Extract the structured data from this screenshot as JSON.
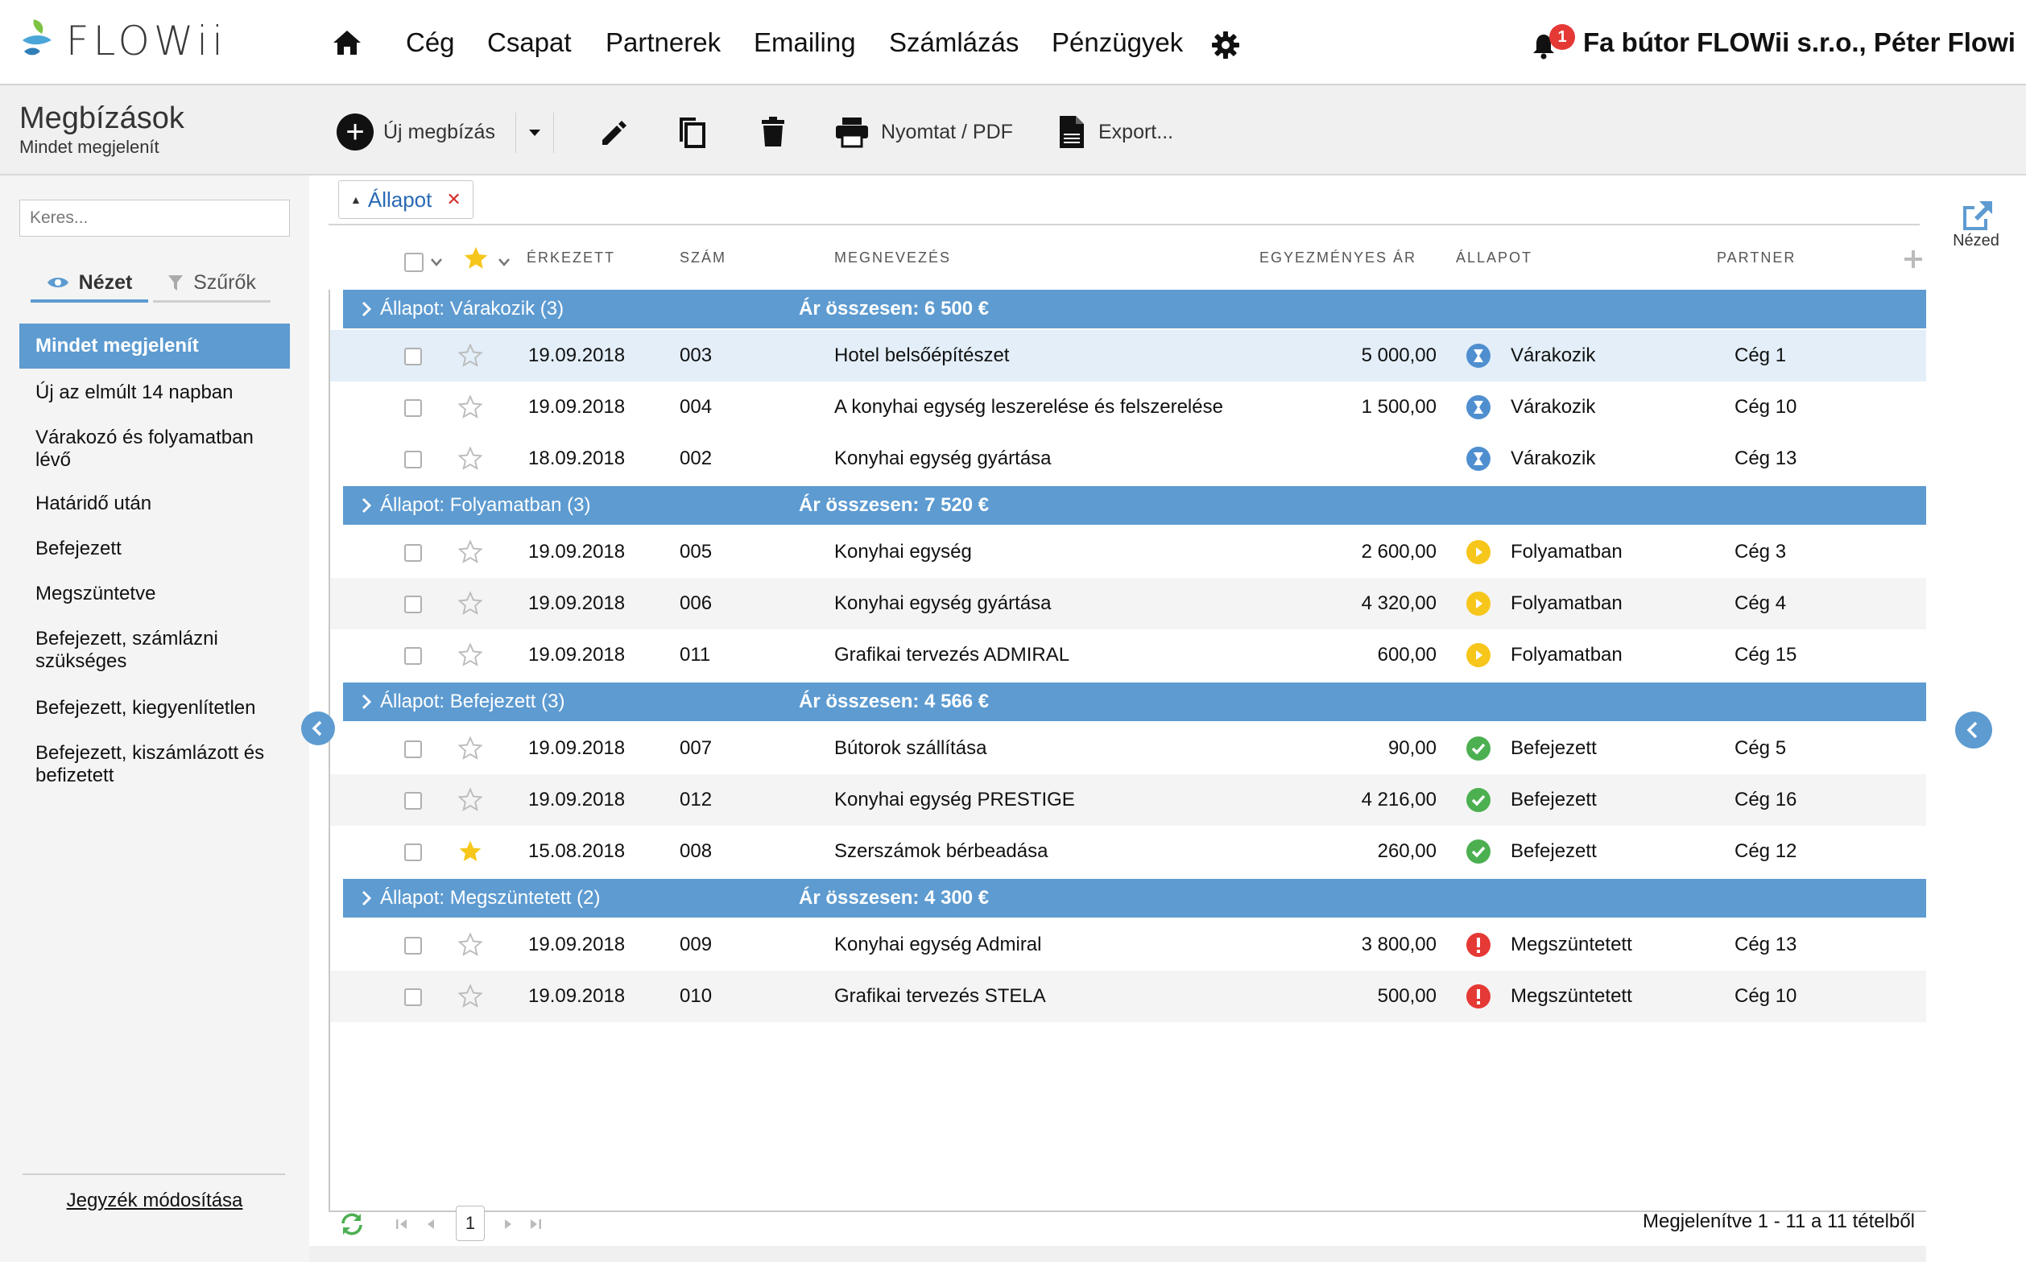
{
  "app": {
    "brand": "FLOWii",
    "nav": [
      "Cég",
      "Csapat",
      "Partnerek",
      "Emailing",
      "Számlázás",
      "Pénzügyek"
    ],
    "notifications_count": "1",
    "company_user": "Fa bútor FLOWii s.r.o., Péter Flowi"
  },
  "page": {
    "title": "Megbízások",
    "subtitle": "Mindet megjelenít"
  },
  "toolbar": {
    "new_label": "Új megbízás",
    "print_label": "Nyomtat / PDF",
    "export_label": "Export..."
  },
  "sidebar": {
    "search_placeholder": "Keres...",
    "tab_view": "Nézet",
    "tab_filters": "Szűrők",
    "active_item": "Mindet megjelenít",
    "items": [
      "Új az elmúlt 14 napban",
      "Várakozó és folyamatban lévő",
      "Határidő után",
      "Befejezett",
      "Megszüntetve",
      "Befejezett, számlázni szükséges",
      "Befejezett, kiegyenlítetlen",
      "Befejezett, kiszámlázott és befizetett"
    ],
    "footer_link": "Jegyzék módosítása"
  },
  "grouping": {
    "chip_label": "Állapot"
  },
  "columns": {
    "received": "ÉRKEZETT",
    "number": "SZÁM",
    "name": "MEGNEVEZÉS",
    "price": "EGYEZMÉNYES ÁR",
    "status": "ÁLLAPOT",
    "partner": "PARTNER"
  },
  "groups": [
    {
      "label": "Állapot: Várakozik (3)",
      "total": "Ár összesen: 6 500 €",
      "status_kind": "waiting",
      "rows": [
        {
          "date": "19.09.2018",
          "num": "003",
          "name": "Hotel belsőépítészet",
          "price": "5 000,00",
          "status": "Várakozik",
          "partner": "Cég 1",
          "starred": false
        },
        {
          "date": "19.09.2018",
          "num": "004",
          "name": "A konyhai egység leszerelése és felszerelése",
          "price": "1 500,00",
          "status": "Várakozik",
          "partner": "Cég 10",
          "starred": false
        },
        {
          "date": "18.09.2018",
          "num": "002",
          "name": "Konyhai egység gyártása",
          "price": "",
          "status": "Várakozik",
          "partner": "Cég 13",
          "starred": false
        }
      ]
    },
    {
      "label": "Állapot: Folyamatban (3)",
      "total": "Ár összesen: 7 520 €",
      "status_kind": "progress",
      "rows": [
        {
          "date": "19.09.2018",
          "num": "005",
          "name": "Konyhai egység",
          "price": "2 600,00",
          "status": "Folyamatban",
          "partner": "Cég 3",
          "starred": false
        },
        {
          "date": "19.09.2018",
          "num": "006",
          "name": "Konyhai egység gyártása",
          "price": "4 320,00",
          "status": "Folyamatban",
          "partner": "Cég 4",
          "starred": false
        },
        {
          "date": "19.09.2018",
          "num": "011",
          "name": "Grafikai tervezés ADMIRAL",
          "price": "600,00",
          "status": "Folyamatban",
          "partner": "Cég 15",
          "starred": false
        }
      ]
    },
    {
      "label": "Állapot: Befejezett (3)",
      "total": "Ár összesen: 4 566 €",
      "status_kind": "done",
      "rows": [
        {
          "date": "19.09.2018",
          "num": "007",
          "name": "Bútorok szállítása",
          "price": "90,00",
          "status": "Befejezett",
          "partner": "Cég 5",
          "starred": false
        },
        {
          "date": "19.09.2018",
          "num": "012",
          "name": "Konyhai egység PRESTIGE",
          "price": "4 216,00",
          "status": "Befejezett",
          "partner": "Cég 16",
          "starred": false
        },
        {
          "date": "15.08.2018",
          "num": "008",
          "name": "Szerszámok bérbeadása",
          "price": "260,00",
          "status": "Befejezett",
          "partner": "Cég 12",
          "starred": true
        }
      ]
    },
    {
      "label": "Állapot: Megszüntetett (2)",
      "total": "Ár összesen: 4 300 €",
      "status_kind": "cancelled",
      "rows": [
        {
          "date": "19.09.2018",
          "num": "009",
          "name": "Konyhai egység Admiral",
          "price": "3 800,00",
          "status": "Megszüntetett",
          "partner": "Cég 13",
          "starred": false
        },
        {
          "date": "19.09.2018",
          "num": "010",
          "name": "Grafikai tervezés STELA",
          "price": "500,00",
          "status": "Megszüntetett",
          "partner": "Cég 10",
          "starred": false
        }
      ]
    }
  ],
  "right_panel": {
    "view_label": "Nézed"
  },
  "pager": {
    "current_page": "1",
    "info": "Megjelenítve 1 - 11 a 11 tételből"
  },
  "colors": {
    "accent": "#5d9bd1",
    "waiting": "#4f8fd0",
    "progress": "#f7c61b",
    "done": "#4caf50",
    "cancelled": "#e53935",
    "star_on": "#f7c61b"
  }
}
